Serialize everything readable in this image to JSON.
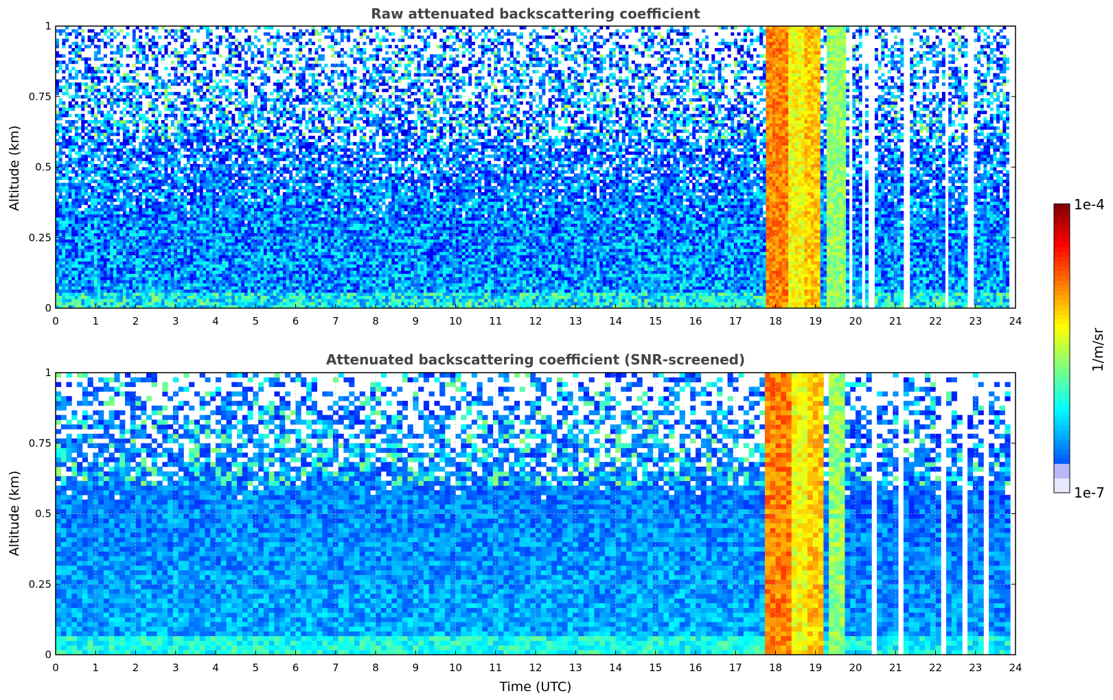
{
  "chart_data": [
    {
      "type": "heatmap",
      "title": "Raw attenuated backscattering coefficient",
      "xlabel": "",
      "ylabel": "Altitude (km)",
      "xlim": [
        0,
        24
      ],
      "ylim": [
        0,
        1
      ],
      "x_ticks": [
        "0",
        "1",
        "2",
        "3",
        "4",
        "5",
        "6",
        "7",
        "8",
        "9",
        "10",
        "11",
        "12",
        "13",
        "14",
        "15",
        "16",
        "17",
        "18",
        "19",
        "20",
        "21",
        "22",
        "23",
        "24"
      ],
      "y_ticks": [
        "0",
        "0.25",
        "0.5",
        "0.75",
        "1"
      ],
      "y_tick_values": [
        0,
        0.25,
        0.5,
        0.75,
        1
      ],
      "grid": true,
      "screened": false,
      "features": [
        {
          "kind": "background",
          "x": [
            0,
            17.8
          ],
          "level": 0.2,
          "note": "weak noisy signal, sparse above 0.4 km"
        },
        {
          "kind": "cloud_band",
          "x": [
            17.8,
            18.35
          ],
          "level": 0.75
        },
        {
          "kind": "cloud_band",
          "x": [
            18.35,
            18.75
          ],
          "level": 0.62
        },
        {
          "kind": "cloud_band",
          "x": [
            18.75,
            19.15
          ],
          "level": 0.68
        },
        {
          "kind": "clear_gap",
          "x": [
            19.15,
            19.3
          ],
          "level": 0.22
        },
        {
          "kind": "cloud_band",
          "x": [
            19.3,
            19.75
          ],
          "level": 0.52
        },
        {
          "kind": "intermittent",
          "x": [
            19.75,
            23.8
          ],
          "level": 0.2
        }
      ]
    },
    {
      "type": "heatmap",
      "title": "Attenuated backscattering coefficient (SNR-screened)",
      "xlabel": "Time (UTC)",
      "ylabel": "Altitude (km)",
      "xlim": [
        0,
        24
      ],
      "ylim": [
        0,
        1
      ],
      "x_ticks": [
        "0",
        "1",
        "2",
        "3",
        "4",
        "5",
        "6",
        "7",
        "8",
        "9",
        "10",
        "11",
        "12",
        "13",
        "14",
        "15",
        "16",
        "17",
        "18",
        "19",
        "20",
        "21",
        "22",
        "23",
        "24"
      ],
      "y_ticks": [
        "0",
        "0.25",
        "0.5",
        "0.75",
        "1"
      ],
      "y_tick_values": [
        0,
        0.25,
        0.5,
        0.75,
        1
      ],
      "grid": true,
      "screened": true,
      "features": [
        {
          "kind": "background",
          "x": [
            0,
            17.8
          ],
          "level": 0.22,
          "note": "smoothed, screened (white) patches above 0.5 km"
        },
        {
          "kind": "cloud_band",
          "x": [
            17.8,
            18.35
          ],
          "level": 0.75
        },
        {
          "kind": "cloud_band",
          "x": [
            18.35,
            18.75
          ],
          "level": 0.62
        },
        {
          "kind": "cloud_band",
          "x": [
            18.75,
            19.15
          ],
          "level": 0.68
        },
        {
          "kind": "clear_gap",
          "x": [
            19.15,
            19.3
          ],
          "level": 0.22
        },
        {
          "kind": "cloud_band",
          "x": [
            19.3,
            19.75
          ],
          "level": 0.52
        },
        {
          "kind": "intermittent",
          "x": [
            19.75,
            23.8
          ],
          "level": 0.2
        }
      ]
    }
  ],
  "colorbar": {
    "label": "1/m/sr",
    "max_label": "1e-4",
    "min_label": "1e-7",
    "scale": "log",
    "colormap": "jet"
  }
}
